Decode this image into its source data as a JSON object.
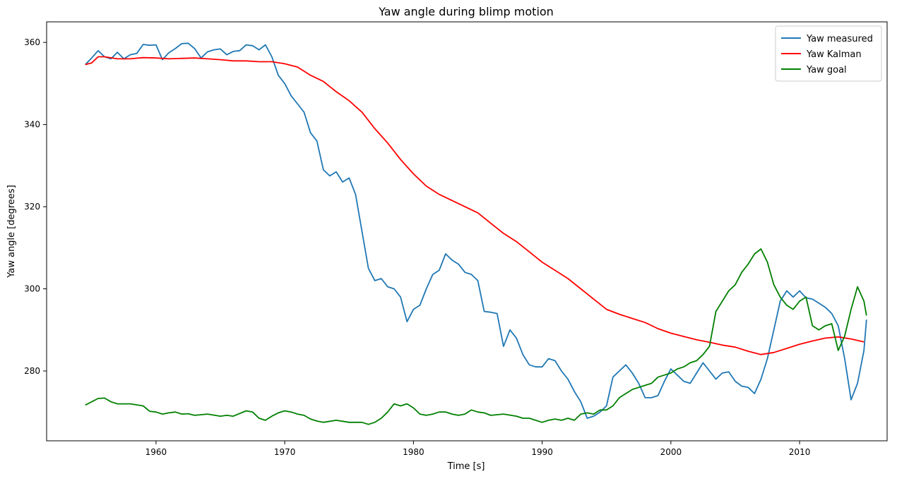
{
  "chart_data": {
    "type": "line",
    "title": "Yaw angle during blimp motion",
    "xlabel": "Time [s]",
    "ylabel": "Yaw angle [degrees]",
    "xlim": [
      1951.5,
      2016.8
    ],
    "ylim": [
      263,
      365
    ],
    "xticks": [
      1960,
      1970,
      1980,
      1990,
      2000,
      2010
    ],
    "yticks": [
      280,
      300,
      320,
      340,
      360
    ],
    "grid": false,
    "legend": "top-right",
    "series": [
      {
        "name": "Yaw measured",
        "color": "#1f77b4",
        "points": [
          [
            1954.5,
            354.6
          ],
          [
            1955.0,
            356.2
          ],
          [
            1955.5,
            358.0
          ],
          [
            1956.0,
            356.5
          ],
          [
            1956.5,
            356.0
          ],
          [
            1957.0,
            357.6
          ],
          [
            1957.5,
            356.0
          ],
          [
            1958.0,
            357.0
          ],
          [
            1958.5,
            357.3
          ],
          [
            1959.0,
            359.5
          ],
          [
            1959.5,
            359.3
          ],
          [
            1960.0,
            359.4
          ],
          [
            1960.5,
            355.8
          ],
          [
            1961.0,
            357.5
          ],
          [
            1961.5,
            358.5
          ],
          [
            1962.0,
            359.7
          ],
          [
            1962.5,
            359.8
          ],
          [
            1963.0,
            358.5
          ],
          [
            1963.5,
            356.2
          ],
          [
            1964.0,
            357.7
          ],
          [
            1964.5,
            358.2
          ],
          [
            1965.0,
            358.4
          ],
          [
            1965.5,
            357.0
          ],
          [
            1966.0,
            357.8
          ],
          [
            1966.5,
            358.0
          ],
          [
            1967.0,
            359.4
          ],
          [
            1967.5,
            359.2
          ],
          [
            1968.0,
            358.2
          ],
          [
            1968.5,
            359.4
          ],
          [
            1969.0,
            356.5
          ],
          [
            1969.5,
            352.0
          ],
          [
            1970.0,
            350.0
          ],
          [
            1970.5,
            347.0
          ],
          [
            1971.0,
            345.0
          ],
          [
            1971.5,
            343.0
          ],
          [
            1972.0,
            338.0
          ],
          [
            1972.5,
            336.0
          ],
          [
            1973.0,
            329.0
          ],
          [
            1973.5,
            327.5
          ],
          [
            1974.0,
            328.5
          ],
          [
            1974.5,
            326.0
          ],
          [
            1975.0,
            327.0
          ],
          [
            1975.5,
            323.0
          ],
          [
            1976.0,
            314.0
          ],
          [
            1976.5,
            305.0
          ],
          [
            1977.0,
            302.0
          ],
          [
            1977.5,
            302.5
          ],
          [
            1978.0,
            300.5
          ],
          [
            1978.5,
            300.0
          ],
          [
            1979.0,
            298.0
          ],
          [
            1979.5,
            292.0
          ],
          [
            1980.0,
            295.0
          ],
          [
            1980.5,
            296.0
          ],
          [
            1981.0,
            300.0
          ],
          [
            1981.5,
            303.5
          ],
          [
            1982.0,
            304.5
          ],
          [
            1982.5,
            308.5
          ],
          [
            1983.0,
            307.0
          ],
          [
            1983.5,
            306.0
          ],
          [
            1984.0,
            304.0
          ],
          [
            1984.5,
            303.5
          ],
          [
            1985.0,
            302.0
          ],
          [
            1985.5,
            294.5
          ],
          [
            1986.0,
            294.3
          ],
          [
            1986.5,
            294.0
          ],
          [
            1987.0,
            286.0
          ],
          [
            1987.5,
            290.0
          ],
          [
            1988.0,
            288.0
          ],
          [
            1988.5,
            284.0
          ],
          [
            1989.0,
            281.5
          ],
          [
            1989.5,
            281.0
          ],
          [
            1990.0,
            281.0
          ],
          [
            1990.5,
            283.0
          ],
          [
            1991.0,
            282.5
          ],
          [
            1991.5,
            280.0
          ],
          [
            1992.0,
            278.0
          ],
          [
            1992.5,
            275.0
          ],
          [
            1993.0,
            272.5
          ],
          [
            1993.5,
            268.5
          ],
          [
            1994.0,
            269.0
          ],
          [
            1994.5,
            270.0
          ],
          [
            1995.0,
            271.5
          ],
          [
            1995.5,
            278.5
          ],
          [
            1996.0,
            280.0
          ],
          [
            1996.5,
            281.5
          ],
          [
            1997.0,
            279.5
          ],
          [
            1997.5,
            277.0
          ],
          [
            1998.0,
            273.5
          ],
          [
            1998.5,
            273.5
          ],
          [
            1999.0,
            274.0
          ],
          [
            1999.5,
            277.5
          ],
          [
            2000.0,
            280.5
          ],
          [
            2000.5,
            279.0
          ],
          [
            2001.0,
            277.5
          ],
          [
            2001.5,
            277.0
          ],
          [
            2002.0,
            279.5
          ],
          [
            2002.5,
            282.0
          ],
          [
            2003.0,
            280.0
          ],
          [
            2003.5,
            278.0
          ],
          [
            2004.0,
            279.5
          ],
          [
            2004.5,
            279.8
          ],
          [
            2005.0,
            277.5
          ],
          [
            2005.5,
            276.3
          ],
          [
            2006.0,
            276.0
          ],
          [
            2006.5,
            274.5
          ],
          [
            2007.0,
            278.0
          ],
          [
            2007.5,
            283.0
          ],
          [
            2008.0,
            290.0
          ],
          [
            2008.5,
            297.0
          ],
          [
            2009.0,
            299.5
          ],
          [
            2009.5,
            298.0
          ],
          [
            2010.0,
            299.5
          ],
          [
            2010.5,
            297.8
          ],
          [
            2011.0,
            297.5
          ],
          [
            2011.5,
            296.5
          ],
          [
            2012.0,
            295.5
          ],
          [
            2012.5,
            294.0
          ],
          [
            2013.0,
            291.0
          ],
          [
            2013.5,
            283.0
          ],
          [
            2014.0,
            273.0
          ],
          [
            2014.5,
            277.0
          ],
          [
            2015.0,
            285.0
          ],
          [
            2015.2,
            292.5
          ]
        ]
      },
      {
        "name": "Yaw Kalman",
        "color": "#ff0000",
        "points": [
          [
            1954.5,
            354.6
          ],
          [
            1955.0,
            355.0
          ],
          [
            1955.5,
            356.5
          ],
          [
            1956.0,
            356.5
          ],
          [
            1957.0,
            356.0
          ],
          [
            1958.0,
            356.0
          ],
          [
            1959.0,
            356.3
          ],
          [
            1960.0,
            356.2
          ],
          [
            1961.0,
            356.0
          ],
          [
            1962.0,
            356.1
          ],
          [
            1963.0,
            356.2
          ],
          [
            1964.0,
            356.0
          ],
          [
            1965.0,
            355.8
          ],
          [
            1966.0,
            355.5
          ],
          [
            1967.0,
            355.5
          ],
          [
            1968.0,
            355.3
          ],
          [
            1969.0,
            355.3
          ],
          [
            1970.0,
            354.8
          ],
          [
            1971.0,
            354.0
          ],
          [
            1972.0,
            352.0
          ],
          [
            1973.0,
            350.5
          ],
          [
            1974.0,
            348.0
          ],
          [
            1975.0,
            345.8
          ],
          [
            1976.0,
            343.0
          ],
          [
            1977.0,
            339.0
          ],
          [
            1978.0,
            335.5
          ],
          [
            1979.0,
            331.5
          ],
          [
            1980.0,
            328.0
          ],
          [
            1981.0,
            325.0
          ],
          [
            1982.0,
            323.0
          ],
          [
            1983.0,
            321.5
          ],
          [
            1984.0,
            320.0
          ],
          [
            1985.0,
            318.5
          ],
          [
            1986.0,
            316.0
          ],
          [
            1987.0,
            313.5
          ],
          [
            1988.0,
            311.5
          ],
          [
            1989.0,
            309.0
          ],
          [
            1990.0,
            306.5
          ],
          [
            1991.0,
            304.5
          ],
          [
            1992.0,
            302.5
          ],
          [
            1993.0,
            300.0
          ],
          [
            1994.0,
            297.5
          ],
          [
            1995.0,
            295.0
          ],
          [
            1996.0,
            293.8
          ],
          [
            1997.0,
            292.8
          ],
          [
            1998.0,
            291.8
          ],
          [
            1999.0,
            290.3
          ],
          [
            2000.0,
            289.2
          ],
          [
            2001.0,
            288.4
          ],
          [
            2002.0,
            287.6
          ],
          [
            2003.0,
            287.0
          ],
          [
            2004.0,
            286.3
          ],
          [
            2005.0,
            285.8
          ],
          [
            2006.0,
            284.8
          ],
          [
            2007.0,
            284.0
          ],
          [
            2008.0,
            284.5
          ],
          [
            2009.0,
            285.5
          ],
          [
            2010.0,
            286.5
          ],
          [
            2011.0,
            287.3
          ],
          [
            2012.0,
            288.0
          ],
          [
            2013.0,
            288.3
          ],
          [
            2014.0,
            287.8
          ],
          [
            2015.0,
            287.1
          ]
        ]
      },
      {
        "name": "Yaw goal",
        "color": "#008000",
        "points": [
          [
            1954.5,
            271.7
          ],
          [
            1955.0,
            272.5
          ],
          [
            1955.5,
            273.3
          ],
          [
            1956.0,
            273.4
          ],
          [
            1956.5,
            272.5
          ],
          [
            1957.0,
            272.0
          ],
          [
            1958.0,
            272.0
          ],
          [
            1959.0,
            271.5
          ],
          [
            1959.5,
            270.2
          ],
          [
            1960.0,
            270.0
          ],
          [
            1960.5,
            269.5
          ],
          [
            1961.0,
            269.8
          ],
          [
            1961.5,
            270.0
          ],
          [
            1962.0,
            269.5
          ],
          [
            1962.5,
            269.6
          ],
          [
            1963.0,
            269.2
          ],
          [
            1964.0,
            269.5
          ],
          [
            1965.0,
            269.0
          ],
          [
            1965.5,
            269.2
          ],
          [
            1966.0,
            269.0
          ],
          [
            1967.0,
            270.3
          ],
          [
            1967.5,
            270.0
          ],
          [
            1968.0,
            268.5
          ],
          [
            1968.5,
            268.0
          ],
          [
            1969.0,
            269.0
          ],
          [
            1969.5,
            269.8
          ],
          [
            1970.0,
            270.3
          ],
          [
            1970.5,
            270.0
          ],
          [
            1971.0,
            269.5
          ],
          [
            1971.5,
            269.2
          ],
          [
            1972.0,
            268.3
          ],
          [
            1972.5,
            267.8
          ],
          [
            1973.0,
            267.5
          ],
          [
            1974.0,
            268.0
          ],
          [
            1975.0,
            267.5
          ],
          [
            1975.5,
            267.5
          ],
          [
            1976.0,
            267.5
          ],
          [
            1976.5,
            267.0
          ],
          [
            1977.0,
            267.5
          ],
          [
            1977.5,
            268.5
          ],
          [
            1978.0,
            270.0
          ],
          [
            1978.5,
            272.0
          ],
          [
            1979.0,
            271.5
          ],
          [
            1979.5,
            272.0
          ],
          [
            1980.0,
            271.0
          ],
          [
            1980.5,
            269.5
          ],
          [
            1981.0,
            269.2
          ],
          [
            1981.5,
            269.5
          ],
          [
            1982.0,
            270.0
          ],
          [
            1982.5,
            270.0
          ],
          [
            1983.0,
            269.5
          ],
          [
            1983.5,
            269.2
          ],
          [
            1984.0,
            269.5
          ],
          [
            1984.5,
            270.5
          ],
          [
            1985.0,
            270.0
          ],
          [
            1985.5,
            269.8
          ],
          [
            1986.0,
            269.2
          ],
          [
            1987.0,
            269.5
          ],
          [
            1988.0,
            269.0
          ],
          [
            1988.5,
            268.5
          ],
          [
            1989.0,
            268.5
          ],
          [
            1989.5,
            268.0
          ],
          [
            1990.0,
            267.5
          ],
          [
            1990.5,
            268.0
          ],
          [
            1991.0,
            268.3
          ],
          [
            1991.5,
            268.0
          ],
          [
            1992.0,
            268.5
          ],
          [
            1992.5,
            268.0
          ],
          [
            1993.0,
            269.5
          ],
          [
            1993.5,
            269.8
          ],
          [
            1994.0,
            269.5
          ],
          [
            1994.5,
            270.5
          ],
          [
            1995.0,
            270.5
          ],
          [
            1995.5,
            271.5
          ],
          [
            1996.0,
            273.5
          ],
          [
            1996.5,
            274.5
          ],
          [
            1997.0,
            275.5
          ],
          [
            1997.5,
            276.0
          ],
          [
            1998.0,
            276.5
          ],
          [
            1998.5,
            277.0
          ],
          [
            1999.0,
            278.5
          ],
          [
            1999.5,
            279.0
          ],
          [
            2000.0,
            279.5
          ],
          [
            2000.5,
            280.5
          ],
          [
            2001.0,
            281.0
          ],
          [
            2001.5,
            282.0
          ],
          [
            2002.0,
            282.5
          ],
          [
            2002.5,
            284.0
          ],
          [
            2003.0,
            286.0
          ],
          [
            2003.5,
            294.5
          ],
          [
            2004.0,
            297.0
          ],
          [
            2004.5,
            299.5
          ],
          [
            2005.0,
            301.0
          ],
          [
            2005.5,
            304.0
          ],
          [
            2006.0,
            306.0
          ],
          [
            2006.5,
            308.5
          ],
          [
            2007.0,
            309.7
          ],
          [
            2007.5,
            306.5
          ],
          [
            2008.0,
            301.0
          ],
          [
            2008.5,
            298.0
          ],
          [
            2009.0,
            296.0
          ],
          [
            2009.5,
            295.0
          ],
          [
            2010.0,
            297.0
          ],
          [
            2010.5,
            298.0
          ],
          [
            2011.0,
            291.0
          ],
          [
            2011.5,
            290.0
          ],
          [
            2012.0,
            291.0
          ],
          [
            2012.5,
            291.5
          ],
          [
            2013.0,
            285.0
          ],
          [
            2013.5,
            288.5
          ],
          [
            2014.0,
            295.0
          ],
          [
            2014.5,
            300.5
          ],
          [
            2015.0,
            297.0
          ],
          [
            2015.2,
            293.5
          ]
        ]
      }
    ]
  }
}
